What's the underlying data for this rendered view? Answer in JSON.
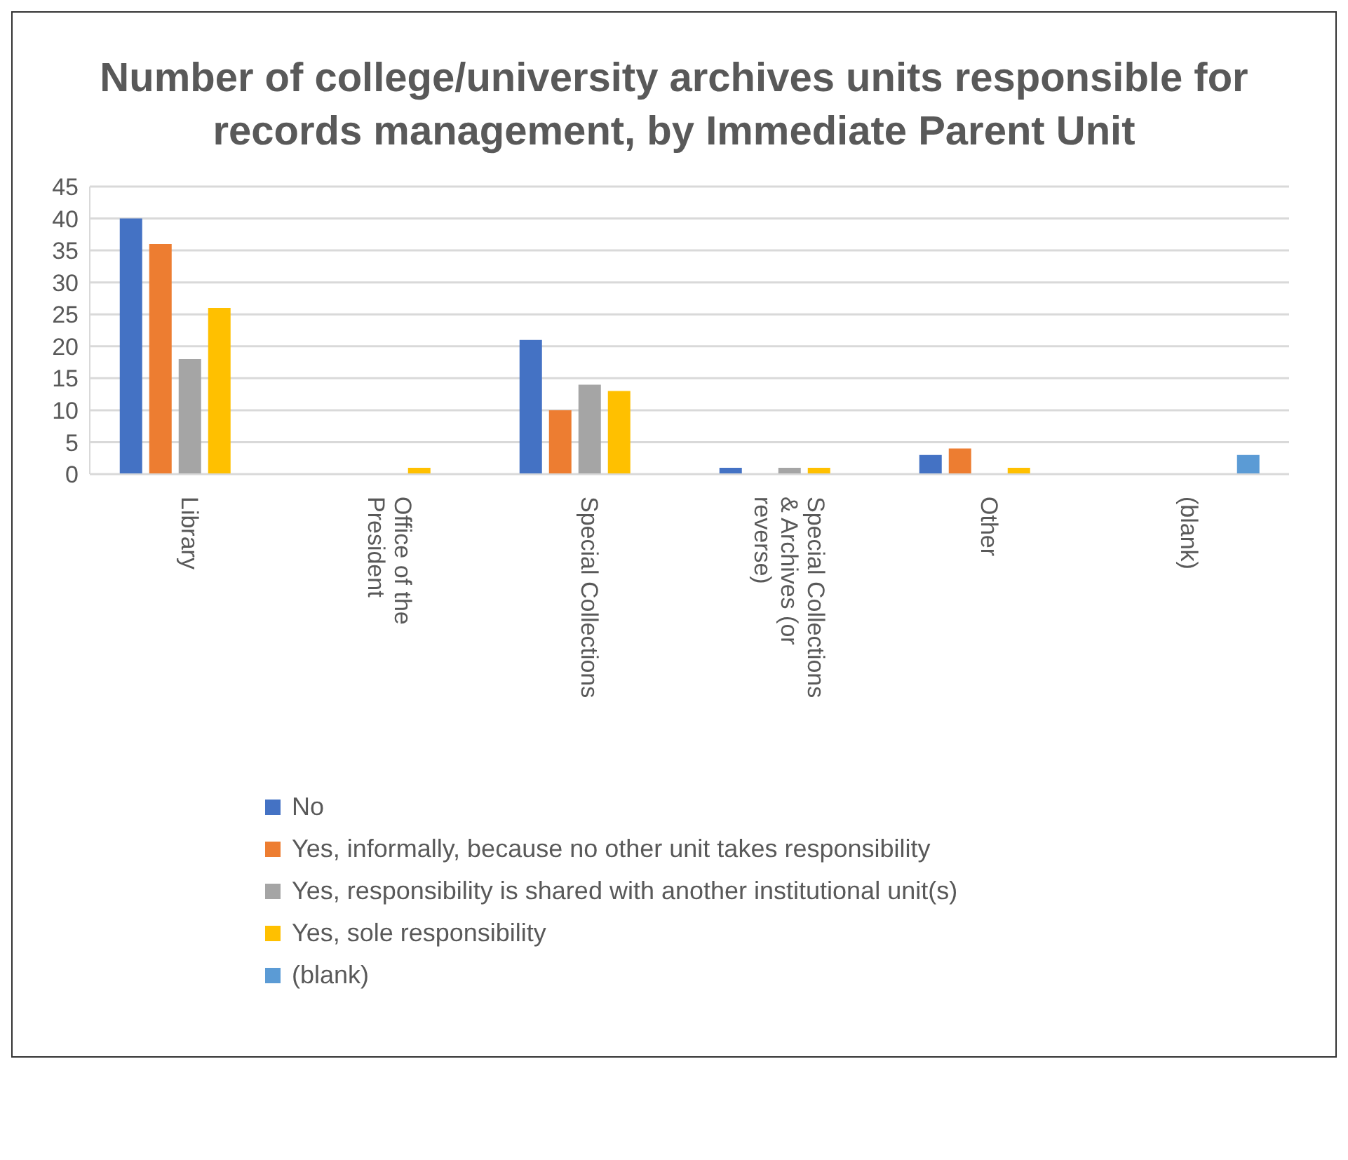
{
  "chart_data": {
    "type": "bar",
    "title": "Number of college/university archives units responsible for records management, by Immediate Parent Unit",
    "categories": [
      "Library",
      "Office of the President",
      "Special Collections",
      "Special Collections & Archives (or reverse)",
      "Other",
      "(blank)"
    ],
    "series": [
      {
        "name": "No",
        "color": "#4472c4",
        "values": [
          40,
          null,
          21,
          1,
          3,
          null
        ]
      },
      {
        "name": "Yes, informally, because no other unit takes responsibility",
        "color": "#ed7d31",
        "values": [
          36,
          null,
          10,
          null,
          4,
          null
        ]
      },
      {
        "name": "Yes, responsibility is shared with another institutional unit(s)",
        "color": "#a5a5a5",
        "values": [
          18,
          null,
          14,
          1,
          null,
          null
        ]
      },
      {
        "name": "Yes, sole responsibility",
        "color": "#ffc000",
        "values": [
          26,
          1,
          13,
          1,
          1,
          null
        ]
      },
      {
        "name": "(blank)",
        "color": "#5b9bd5",
        "values": [
          null,
          null,
          null,
          null,
          null,
          3
        ]
      }
    ],
    "ylim": [
      0,
      45
    ],
    "yticks": [
      0,
      5,
      10,
      15,
      20,
      25,
      30,
      35,
      40,
      45
    ],
    "grid": "y",
    "legend": "bottom"
  }
}
